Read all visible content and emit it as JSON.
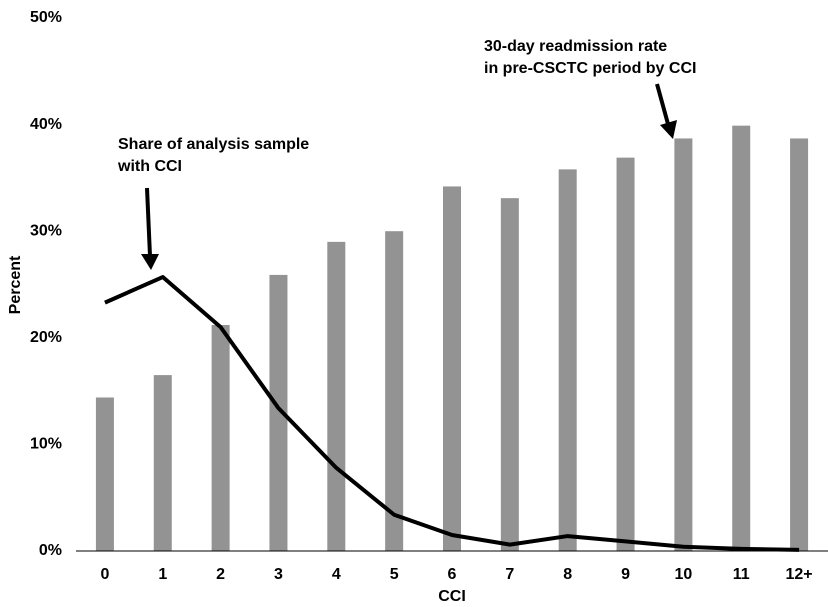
{
  "chart_data": {
    "type": "bar",
    "x_label": "CCI",
    "y_label": "Percent",
    "categories": [
      "0",
      "1",
      "2",
      "3",
      "4",
      "5",
      "6",
      "7",
      "8",
      "9",
      "10",
      "11",
      "12+"
    ],
    "series": [
      {
        "type": "bar",
        "color": "#939393",
        "values": [
          14.4,
          16.5,
          21.2,
          25.9,
          29.0,
          30.0,
          34.2,
          33.1,
          35.8,
          36.9,
          38.7,
          39.9,
          38.7
        ]
      },
      {
        "type": "line",
        "color": "#000000",
        "values": [
          23.3,
          25.7,
          21.0,
          13.4,
          7.8,
          3.4,
          1.5,
          0.6,
          1.4,
          0.9,
          0.4,
          0.2,
          0.1
        ]
      }
    ],
    "ylim": [
      0,
      50
    ],
    "yticks": [
      {
        "value": 0,
        "label": "0%"
      },
      {
        "value": 10,
        "label": "10%"
      },
      {
        "value": 20,
        "label": "20%"
      },
      {
        "value": 30,
        "label": "30%"
      },
      {
        "value": 40,
        "label": "40%"
      },
      {
        "value": 50,
        "label": "50%"
      }
    ],
    "grid": false,
    "annotations": [
      {
        "lines": [
          "Share of analysis sample",
          "with CCI"
        ]
      },
      {
        "lines": [
          "30-day readmission rate",
          "in pre-CSCTC period by CCI"
        ]
      }
    ]
  }
}
